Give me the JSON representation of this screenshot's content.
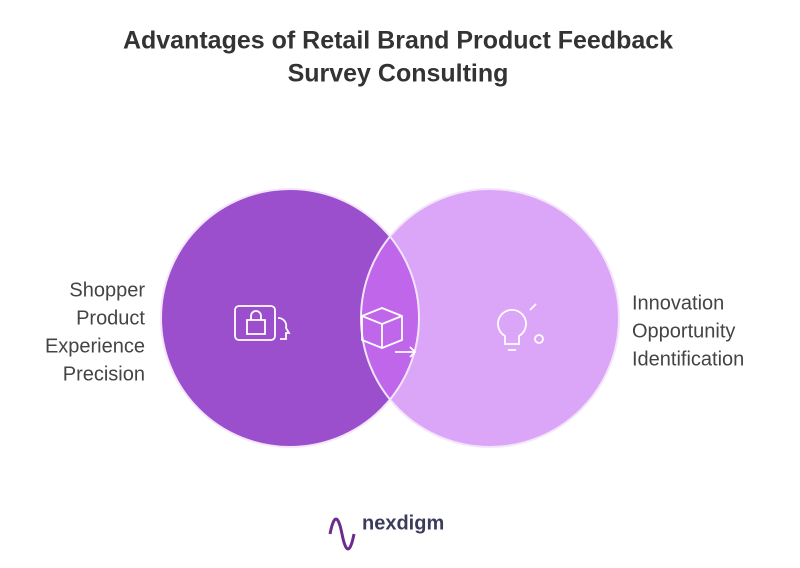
{
  "title": {
    "line1": "Advantages of Retail Brand Product Feedback",
    "line2": "Survey Consulting"
  },
  "left": {
    "lines": [
      "Shopper",
      "Product",
      "Experience",
      "Precision"
    ]
  },
  "right": {
    "lines": [
      "Innovation",
      "Opportunity",
      "Identification"
    ]
  },
  "logo": {
    "text": "nexdigm"
  }
}
